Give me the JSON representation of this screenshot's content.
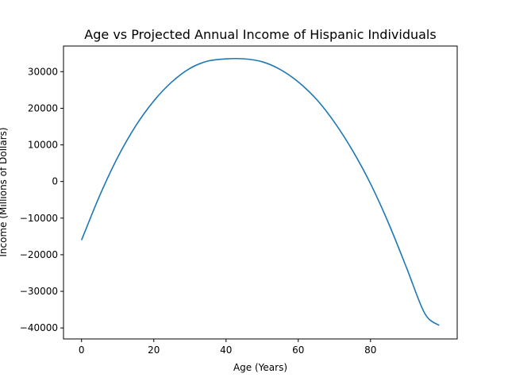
{
  "chart_data": {
    "type": "line",
    "title": "Age vs Projected Annual Income of Hispanic Individuals",
    "xlabel": "Age (Years)",
    "ylabel": "Income (Millions of Dollars)",
    "xlim": [
      -5,
      104
    ],
    "ylim": [
      -43000,
      37000
    ],
    "xticks": [
      0,
      20,
      40,
      60,
      80
    ],
    "yticks": [
      -40000,
      -30000,
      -20000,
      -10000,
      0,
      10000,
      20000,
      30000
    ],
    "xtick_labels": [
      "0",
      "20",
      "40",
      "60",
      "80"
    ],
    "ytick_labels": [
      "−40000",
      "−30000",
      "−20000",
      "−10000",
      "0",
      "10000",
      "20000",
      "30000"
    ],
    "grid": false,
    "series": [
      {
        "color": "#1f77b4",
        "x": [
          0,
          5,
          10,
          15,
          20,
          25,
          30,
          35,
          40,
          45,
          50,
          55,
          60,
          65,
          70,
          75,
          80,
          85,
          90,
          95,
          99
        ],
        "y": [
          -16000,
          -3900,
          6600,
          15200,
          22000,
          27200,
          30900,
          32900,
          33500,
          33500,
          32700,
          30600,
          27200,
          22500,
          16200,
          8500,
          -600,
          -11400,
          -23600,
          -36000,
          -39300
        ]
      }
    ]
  }
}
